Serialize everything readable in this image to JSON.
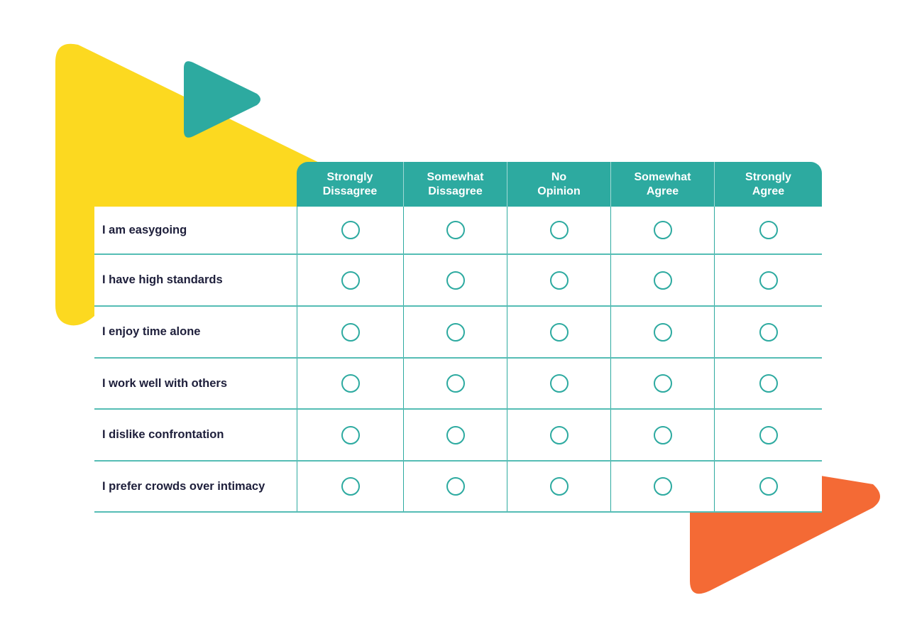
{
  "colors": {
    "yellow": "#FCD920",
    "teal": "#2DAAA0",
    "orange": "#F46A35",
    "label_text": "#1E1F3B"
  },
  "decorations": [
    {
      "name": "yellow-triangle",
      "color": "yellow"
    },
    {
      "name": "teal-triangle",
      "color": "teal"
    },
    {
      "name": "orange-triangle",
      "color": "orange"
    }
  ],
  "survey": {
    "columns": [
      {
        "label": "Strongly\nDissagree"
      },
      {
        "label": "Somewhat\nDissagree"
      },
      {
        "label": "No\nOpinion"
      },
      {
        "label": "Somewhat\nAgree"
      },
      {
        "label": "Strongly\nAgree"
      }
    ],
    "rows": [
      {
        "statement": "I am easygoing",
        "selected": null
      },
      {
        "statement": "I have high standards",
        "selected": null
      },
      {
        "statement": "I enjoy time alone",
        "selected": null
      },
      {
        "statement": "I work well with others",
        "selected": null
      },
      {
        "statement": "I dislike confrontation",
        "selected": null
      },
      {
        "statement": "I prefer crowds over intimacy",
        "selected": null
      }
    ]
  }
}
